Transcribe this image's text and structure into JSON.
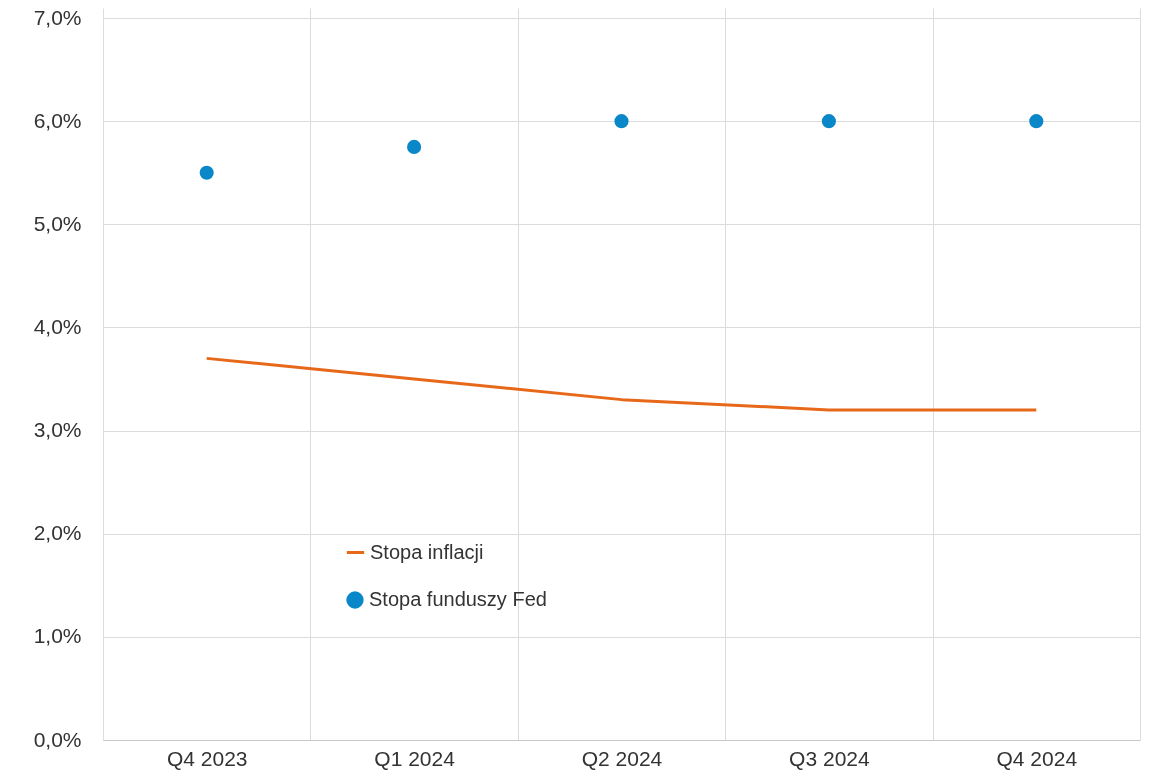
{
  "chart_data": {
    "type": "line",
    "categories": [
      "Q4 2023",
      "Q1 2024",
      "Q2 2024",
      "Q3 2024",
      "Q4 2024"
    ],
    "series": [
      {
        "name": "Stopa inflacji",
        "color": "#e8681a",
        "values": [
          3.7,
          3.5,
          3.3,
          3.2,
          3.2
        ]
      },
      {
        "name": "Stopa funduszy Fed",
        "type": "scatter",
        "color": "#0a87c8",
        "marker": "circle",
        "values": [
          5.5,
          5.75,
          6.0,
          6.0,
          6.0
        ]
      }
    ],
    "ylim": [
      0,
      7
    ],
    "yticks": [
      {
        "value": 0,
        "label": "0,0%"
      },
      {
        "value": 1,
        "label": "1,0%"
      },
      {
        "value": 2,
        "label": "2,0%"
      },
      {
        "value": 3,
        "label": "3,0%"
      },
      {
        "value": 4,
        "label": "4,0%"
      },
      {
        "value": 5,
        "label": "5,0%"
      },
      {
        "value": 6,
        "label": "6,0%"
      },
      {
        "value": 7,
        "label": "7,0%"
      }
    ],
    "grid": true,
    "legend": "bottom left"
  }
}
